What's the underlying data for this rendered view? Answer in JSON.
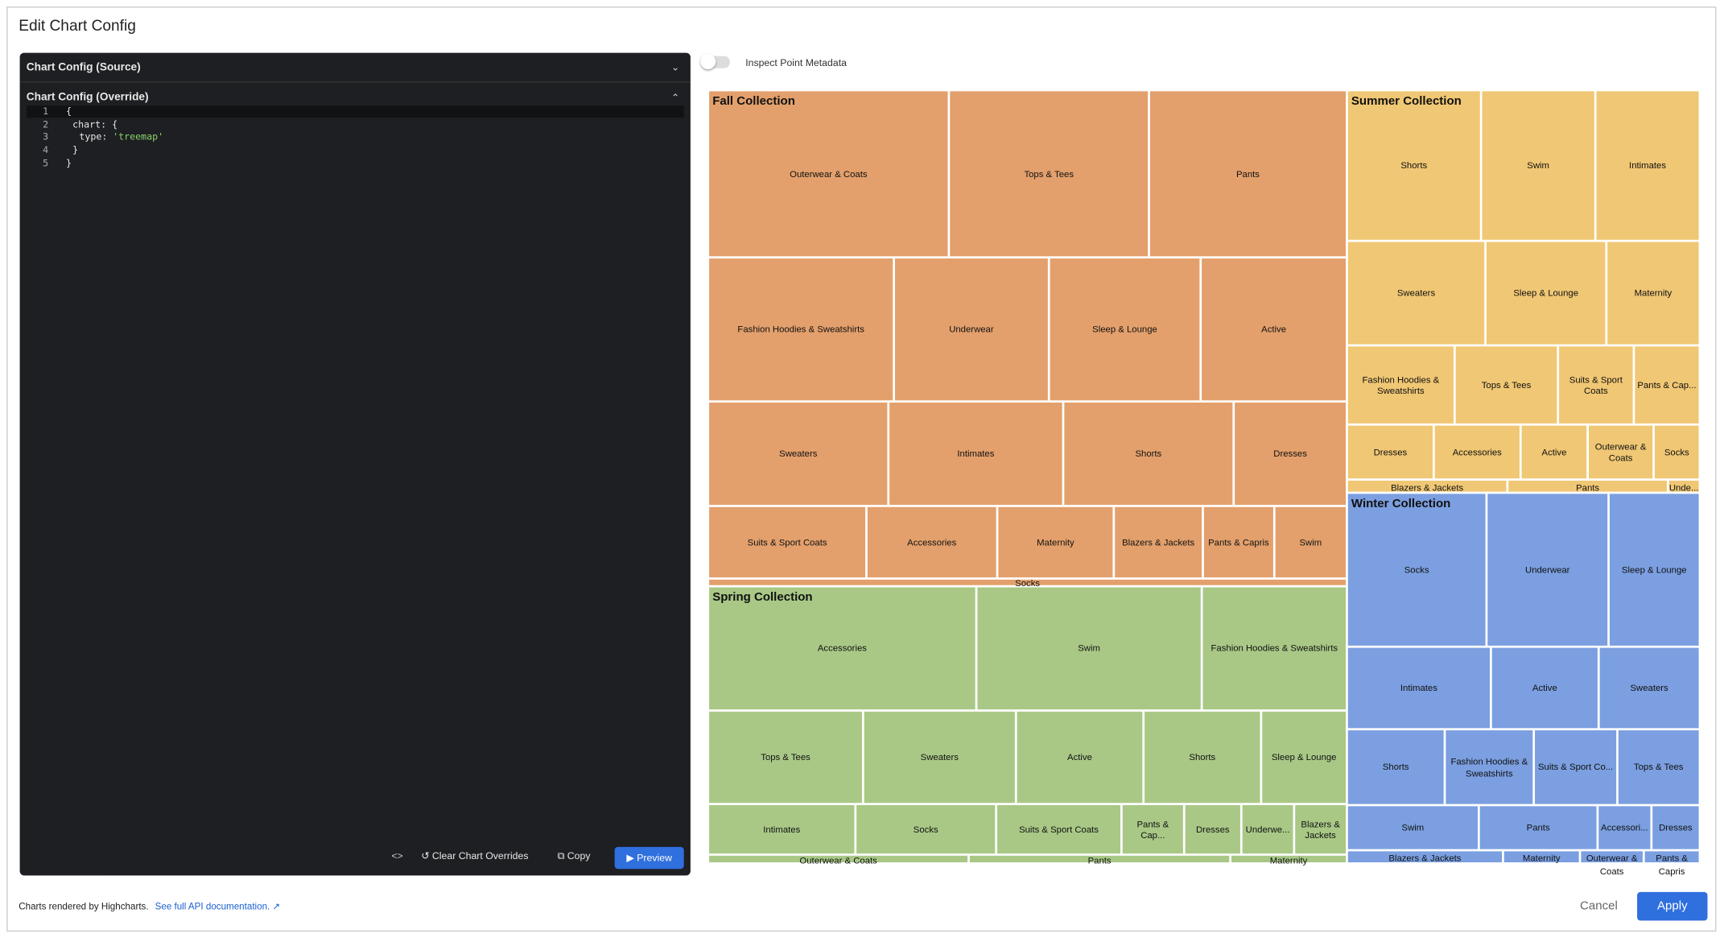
{
  "dialog": {
    "title": "Edit Chart Config"
  },
  "editor": {
    "source_header": "Chart Config (Source)",
    "override_header": "Chart Config (Override)",
    "code_lines": [
      {
        "number": "1",
        "text": "{"
      },
      {
        "number": "2",
        "text": "chart: {"
      },
      {
        "number": "3",
        "key": "type:",
        "string": "'treemap'"
      },
      {
        "number": "4",
        "text": "}"
      },
      {
        "number": "5",
        "text": "}"
      }
    ]
  },
  "toolbar": {
    "clear": "Clear Chart Overrides",
    "copy": "Copy",
    "preview": "Preview"
  },
  "toggle_label": "Inspect Point Metadata",
  "treemap": {
    "groups": [
      {
        "name": "Fall Collection",
        "color": "#e3a06c",
        "items": [
          "Outerwear & Coats",
          "Tops & Tees",
          "Pants",
          "Fashion Hoodies & Sweatshirts",
          "Underwear",
          "Sleep & Lounge",
          "Active",
          "Sweaters",
          "Intimates",
          "Shorts",
          "Dresses",
          "Suits & Sport Coats",
          "Accessories",
          "Maternity",
          "Blazers & Jackets",
          "Pants & Capris",
          "Swim",
          "Socks"
        ]
      },
      {
        "name": "Spring Collection",
        "color": "#a9c886",
        "items": [
          "Accessories",
          "Swim",
          "Fashion Hoodies & Sweatshirts",
          "Tops & Tees",
          "Sweaters",
          "Active",
          "Shorts",
          "Sleep & Lounge",
          "Intimates",
          "Socks",
          "Suits & Sport Coats",
          "Pants & Cap...",
          "Dresses",
          "Underwe...",
          "Blazers & Jackets",
          "Outerwear & Coats",
          "Pants",
          "Maternity"
        ]
      },
      {
        "name": "Summer Collection",
        "color": "#f0c774",
        "items": [
          "Shorts",
          "Swim",
          "Intimates",
          "Sweaters",
          "Sleep & Lounge",
          "Maternity",
          "Fashion Hoodies & Sweatshirts",
          "Tops & Tees",
          "Suits & Sport Coats",
          "Pants & Cap...",
          "Dresses",
          "Accessories",
          "Active",
          "Outerwear & Coats",
          "Socks",
          "Blazers & Jackets",
          "Pants",
          "Unde..."
        ]
      },
      {
        "name": "Winter Collection",
        "color": "#7b9fe0",
        "items": [
          "Socks",
          "Underwear",
          "Sleep & Lounge",
          "Intimates",
          "Active",
          "Sweaters",
          "Shorts",
          "Fashion Hoodies & Sweatshirts",
          "Suits & Sport Co...",
          "Tops & Tees",
          "Swim",
          "Pants",
          "Accessori...",
          "Dresses",
          "Blazers & Jackets",
          "Maternity",
          "Outerwear & Coats",
          "Pants & Capris"
        ]
      }
    ]
  },
  "footer": {
    "text": "Charts rendered by Highcharts.",
    "link": "See full API documentation.",
    "cancel": "Cancel",
    "apply": "Apply"
  }
}
